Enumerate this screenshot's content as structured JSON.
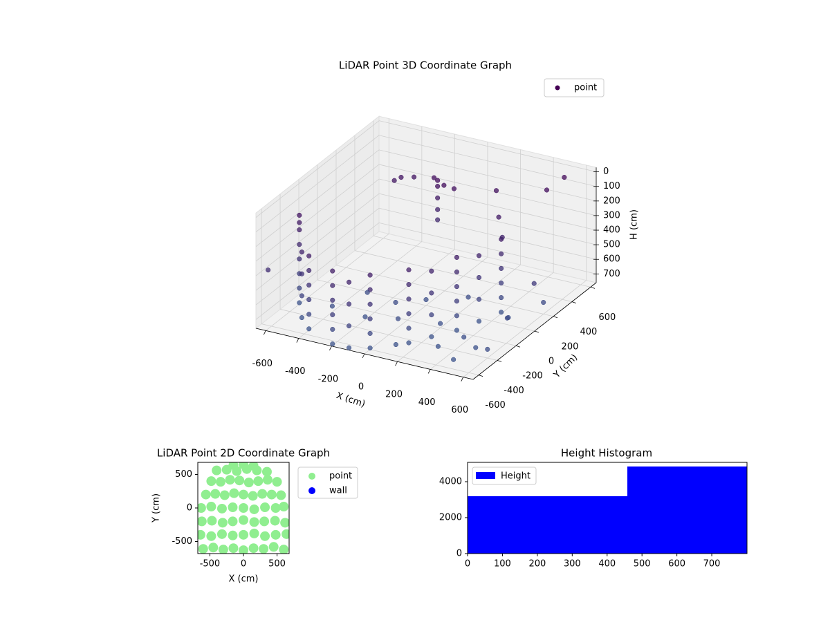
{
  "chart_data": [
    {
      "type": "scatter3d",
      "title": "LiDAR Point 3D Coordinate Graph",
      "xlabel": "X (cm)",
      "ylabel": "Y (cm)",
      "zlabel": "H (cm)",
      "xlim": [
        -660,
        660
      ],
      "ylim": [
        -660,
        660
      ],
      "zlim": [
        760,
        -30
      ],
      "xticks": [
        -600,
        -400,
        -200,
        0,
        200,
        400,
        600
      ],
      "yticks": [
        -600,
        -400,
        -200,
        0,
        200,
        400,
        600
      ],
      "zticks": [
        0,
        100,
        200,
        300,
        400,
        500,
        600,
        700
      ],
      "grid": true,
      "legend_loc": "upper right",
      "colormap": [
        "#440154",
        "#3b528b"
      ],
      "series": [
        {
          "name": "point",
          "x": [
            -600,
            -600,
            -600,
            -600,
            -600,
            -600,
            -400,
            -400,
            -400,
            -400,
            -400,
            -400,
            -200,
            -200,
            -200,
            -200,
            -200,
            -200,
            0,
            0,
            0,
            0,
            0,
            0,
            150,
            150,
            150,
            150,
            150,
            150,
            300,
            300,
            300,
            300,
            300,
            300,
            400,
            400,
            400,
            400,
            400,
            400,
            -600,
            -600,
            -500,
            -500,
            -500,
            -500,
            -100,
            -100,
            -100,
            -100,
            220,
            220,
            220,
            220,
            350,
            350,
            350,
            350,
            -100,
            -100,
            -100,
            -100,
            -100,
            -150,
            -50,
            0,
            -350,
            -300,
            -380,
            200,
            300,
            450,
            500,
            350,
            600,
            550,
            -620,
            -400,
            -200,
            0,
            200,
            300,
            100,
            -300,
            400,
            500,
            450,
            600,
            0,
            200,
            -100,
            500,
            600
          ],
          "y": [
            -300,
            -300,
            -300,
            -300,
            -300,
            -300,
            -550,
            -550,
            -550,
            -550,
            -550,
            -550,
            -650,
            -650,
            -650,
            -650,
            -650,
            -650,
            -600,
            -600,
            -600,
            -600,
            -600,
            -600,
            -450,
            -450,
            -450,
            -450,
            -450,
            -450,
            -200,
            -200,
            -200,
            -200,
            -200,
            -200,
            100,
            100,
            100,
            100,
            100,
            100,
            -300,
            -300,
            -450,
            -450,
            -450,
            -450,
            -650,
            -650,
            -650,
            -650,
            -330,
            -330,
            -330,
            -330,
            -50,
            -50,
            -50,
            -50,
            300,
            300,
            300,
            300,
            300,
            350,
            280,
            300,
            350,
            400,
            330,
            400,
            250,
            500,
            600,
            200,
            100,
            -100,
            -600,
            -300,
            -300,
            -300,
            -200,
            -400,
            -500,
            -100,
            -300,
            -350,
            -500,
            -400,
            0,
            100,
            -150,
            0,
            200
          ],
          "z": [
            250,
            350,
            450,
            550,
            650,
            750,
            250,
            350,
            450,
            550,
            650,
            750,
            250,
            350,
            450,
            550,
            650,
            750,
            250,
            350,
            450,
            550,
            650,
            750,
            250,
            350,
            450,
            550,
            650,
            750,
            250,
            350,
            450,
            550,
            650,
            750,
            250,
            350,
            450,
            550,
            650,
            750,
            150,
            200,
            300,
            450,
            600,
            750,
            300,
            450,
            600,
            750,
            300,
            450,
            600,
            750,
            300,
            450,
            600,
            750,
            80,
            120,
            200,
            280,
            350,
            100,
            90,
            110,
            150,
            160,
            170,
            120,
            200,
            100,
            50,
            300,
            500,
            650,
            380,
            720,
            740,
            700,
            730,
            760,
            750,
            700,
            720,
            740,
            760,
            700,
            720,
            700,
            690,
            710,
            680
          ]
        }
      ]
    },
    {
      "type": "scatter",
      "title": "LiDAR Point 2D Coordinate Graph",
      "xlabel": "X (cm)",
      "ylabel": "Y (cm)",
      "xlim": [
        -680,
        680
      ],
      "ylim": [
        -680,
        680
      ],
      "xticks": [
        -500,
        0,
        500
      ],
      "yticks": [
        -500,
        0,
        500
      ],
      "legend_loc": "outside upper right",
      "series": [
        {
          "name": "point",
          "color": "#90ee90",
          "x": [
            -600,
            -450,
            -300,
            -150,
            0,
            150,
            300,
            450,
            600,
            -640,
            -480,
            -320,
            -160,
            0,
            160,
            320,
            480,
            640,
            -620,
            -470,
            -310,
            -160,
            0,
            160,
            310,
            470,
            620,
            -630,
            -480,
            -320,
            -160,
            0,
            160,
            320,
            480,
            600,
            -560,
            -420,
            -280,
            -140,
            0,
            140,
            280,
            420,
            560,
            -480,
            -340,
            -200,
            -60,
            80,
            220,
            360,
            500,
            -400,
            -250,
            -100,
            50,
            200,
            350,
            -150,
            0,
            150
          ],
          "y": [
            -610,
            -590,
            -620,
            -600,
            -630,
            -600,
            -610,
            -580,
            -620,
            -400,
            -420,
            -390,
            -410,
            -400,
            -380,
            -420,
            -400,
            -390,
            -200,
            -190,
            -220,
            -200,
            -180,
            -210,
            -200,
            -190,
            -220,
            0,
            20,
            -10,
            10,
            0,
            -20,
            10,
            0,
            20,
            200,
            210,
            190,
            220,
            200,
            180,
            210,
            200,
            190,
            400,
            390,
            420,
            410,
            380,
            400,
            420,
            390,
            560,
            570,
            550,
            580,
            560,
            540,
            640,
            650,
            630
          ]
        },
        {
          "name": "wall",
          "color": "#0000ff",
          "x": [],
          "y": []
        }
      ]
    },
    {
      "type": "histogram",
      "title": "Height Histogram",
      "bins": [
        0,
        458,
        801
      ],
      "series": [
        {
          "name": "Height",
          "color": "#0000ff",
          "values": [
            3192,
            4846
          ]
        }
      ],
      "xlim": [
        0,
        801
      ],
      "ylim": [
        0,
        5077
      ],
      "xticks": [
        0,
        100,
        200,
        300,
        400,
        500,
        600,
        700
      ],
      "yticks": [
        0,
        2000,
        4000
      ],
      "legend_loc": "upper left"
    }
  ]
}
